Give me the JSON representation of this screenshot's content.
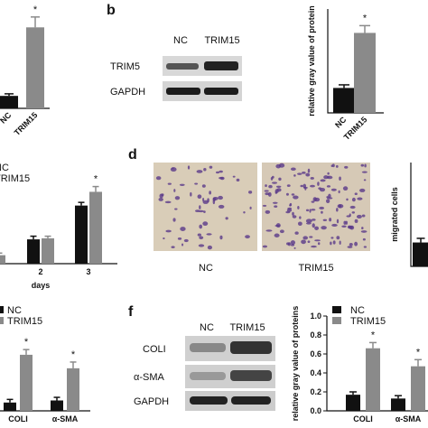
{
  "panel_a": {
    "categories": [
      "NC",
      "TRIM15"
    ],
    "values": [
      0.12,
      0.78
    ],
    "errors": [
      0.02,
      0.1
    ],
    "colors": [
      "#111111",
      "#8a8a8a"
    ],
    "ylim": [
      0,
      1
    ],
    "annotations": [
      null,
      "*"
    ]
  },
  "panel_b": {
    "label": "b",
    "blot": {
      "columns": [
        "NC",
        "TRIM15"
      ],
      "rows": [
        "TRIM5",
        "GAPDH"
      ]
    },
    "chart": {
      "ylabel": "relative gray value of protein",
      "categories": [
        "NC",
        "TRIM15"
      ],
      "values": [
        0.24,
        0.77
      ],
      "errors": [
        0.03,
        0.07
      ],
      "colors": [
        "#111111",
        "#8a8a8a"
      ],
      "ylim": [
        0,
        1
      ],
      "annotations": [
        null,
        "*"
      ]
    }
  },
  "panel_c": {
    "xlabel": "days",
    "categories": [
      null,
      "2",
      "3"
    ],
    "series": [
      {
        "name": "NC",
        "color": "#111111",
        "values": [
          0.08,
          0.23,
          0.55
        ],
        "errors": [
          0.02,
          0.03,
          0.03
        ]
      },
      {
        "name": "TRIM15",
        "color": "#8a8a8a",
        "values": [
          0.08,
          0.24,
          0.68
        ],
        "errors": [
          0.02,
          0.02,
          0.05
        ]
      }
    ],
    "ylim": [
      0,
      1
    ],
    "annotations": [
      null,
      null,
      "*"
    ]
  },
  "panel_d": {
    "label": "d",
    "images": [
      "NC",
      "TRIM15"
    ],
    "chart": {
      "ylabel": "migrated cells",
      "values": [
        0.23
      ],
      "errors": [
        0.04
      ],
      "colors": [
        "#111111"
      ],
      "ylim": [
        0,
        1
      ]
    }
  },
  "panel_e": {
    "categories": [
      "COLI",
      "α-SMA"
    ],
    "series": [
      {
        "name": "NC",
        "color": "#111111",
        "values": [
          0.08,
          0.1
        ],
        "errors": [
          0.03,
          0.03
        ]
      },
      {
        "name": "TRIM15",
        "color": "#8a8a8a",
        "values": [
          0.54,
          0.41
        ],
        "errors": [
          0.05,
          0.06
        ]
      }
    ],
    "ylim": [
      0,
      1
    ],
    "annotations": [
      "*",
      "*"
    ]
  },
  "panel_f": {
    "label": "f",
    "blot": {
      "columns": [
        "NC",
        "TRIM15"
      ],
      "rows": [
        "COLI",
        "α-SMA",
        "GAPDH"
      ]
    },
    "chart": {
      "ylabel": "relative gray value of proteins",
      "categories": [
        "COLI",
        "α-SMA"
      ],
      "series": [
        {
          "name": "NC",
          "color": "#111111",
          "values": [
            0.17,
            0.13
          ],
          "errors": [
            0.03,
            0.03
          ]
        },
        {
          "name": "TRIM15",
          "color": "#8a8a8a",
          "values": [
            0.66,
            0.47
          ],
          "errors": [
            0.06,
            0.07
          ]
        }
      ],
      "ylim": [
        0,
        1
      ],
      "yticks": [
        {
          "value": 0,
          "label": "0.0"
        },
        {
          "value": 0.2,
          "label": "0.2"
        },
        {
          "value": 0.4,
          "label": "0.4"
        },
        {
          "value": 0.6,
          "label": "0.6"
        },
        {
          "value": 0.8,
          "label": "0.8"
        },
        {
          "value": 1,
          "label": "1.0"
        }
      ],
      "annotations": [
        "*",
        "*"
      ]
    }
  }
}
